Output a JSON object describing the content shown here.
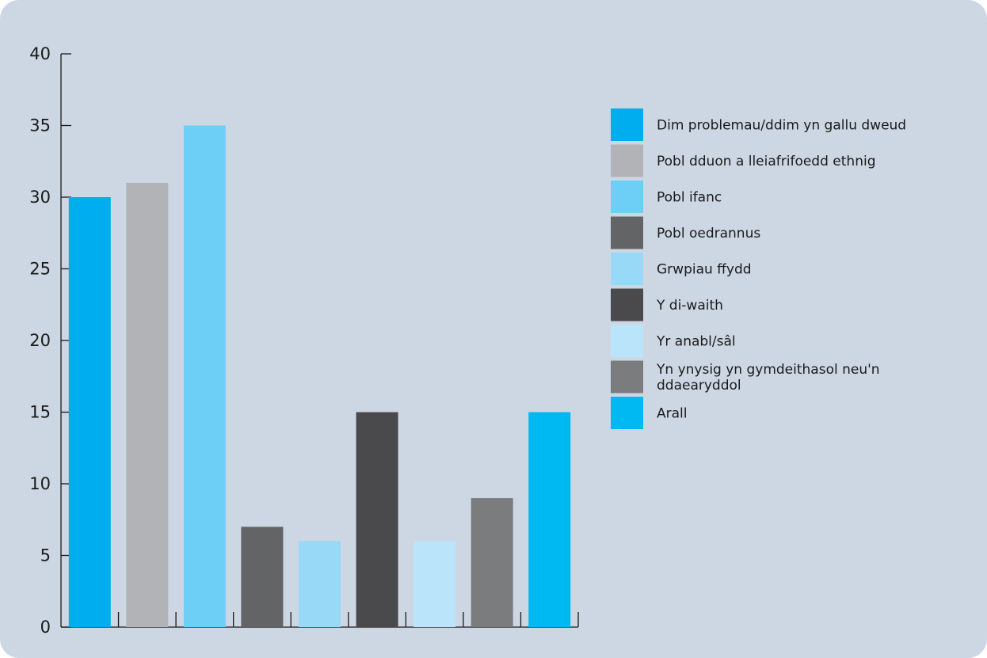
{
  "chart_data": {
    "type": "bar",
    "title": "",
    "xlabel": "",
    "ylabel": "",
    "ylim": [
      0,
      40
    ],
    "yticks": [
      0,
      5,
      10,
      15,
      20,
      25,
      30,
      35,
      40
    ],
    "grid": false,
    "legend_position": "right",
    "categories": [
      "Dim problemau/ddim yn gallu dweud",
      "Pobl dduon a lleiafrifoedd ethnig",
      "Pobl ifanc",
      "Pobl oedrannus",
      "Grwpiau ffydd",
      "Y di-waith",
      "Yr anabl/sâl",
      "Yn ynysig yn gymdeithasol neu'n ddaearyddol",
      "Arall"
    ],
    "values": [
      30,
      31,
      35,
      7,
      6,
      15,
      6,
      9,
      15
    ],
    "colors": [
      "#00aeef",
      "#b1b3b6",
      "#6dcff6",
      "#636466",
      "#97d9f7",
      "#4a4a4d",
      "#b9e4f9",
      "#7b7c7e",
      "#00b9f2"
    ],
    "legend": [
      [
        "Dim problemau/ddim yn gallu dweud"
      ],
      [
        "Pobl dduon a lleiafrifoedd ethnig"
      ],
      [
        "Pobl ifanc"
      ],
      [
        "Pobl oedrannus"
      ],
      [
        "Grwpiau ffydd"
      ],
      [
        "Y di-waith"
      ],
      [
        "Yr anabl/sâl"
      ],
      [
        "Yn ynysig yn gymdeithasol neu'n",
        "ddaearyddol"
      ],
      [
        "Arall"
      ]
    ]
  }
}
